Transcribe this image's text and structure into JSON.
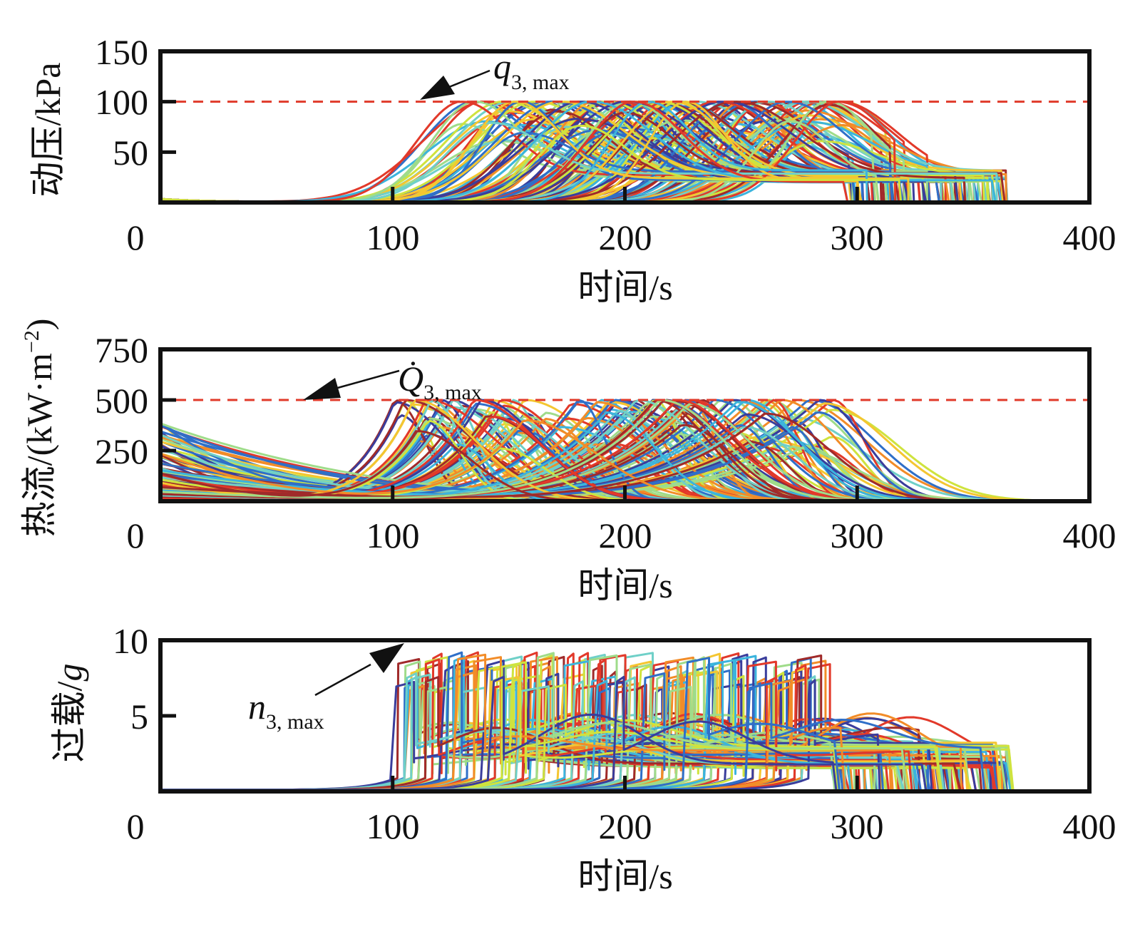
{
  "palette": [
    "#3a3d9c",
    "#2f6fc8",
    "#3bb4dd",
    "#6fd0c8",
    "#9fdc8a",
    "#cfe33e",
    "#f4c631",
    "#f28c28",
    "#e2392a",
    "#a02a2a"
  ],
  "chart_data": [
    {
      "type": "line",
      "name": "dynamic-pressure",
      "ylabel": "动压/kPa",
      "xlabel": "时间/s",
      "xlim": [
        0,
        400
      ],
      "ylim": [
        0,
        150
      ],
      "xticks": [
        "0",
        "100",
        "200",
        "300",
        "400"
      ],
      "yticks": [
        "50",
        "100",
        "150"
      ],
      "ytick_values": [
        50,
        100,
        150
      ],
      "xtick_values": [
        100,
        200,
        300
      ],
      "limit": {
        "value": 100,
        "label": "q",
        "sub": "3, max",
        "color": "#e03a2a"
      },
      "ensemble": {
        "count": 160,
        "seed": 11,
        "peak_time_range": [
          130,
          295
        ],
        "peak_range": [
          60,
          100
        ],
        "tail_plateau_range": [
          20,
          32
        ],
        "end_time_range": [
          295,
          365
        ]
      }
    },
    {
      "type": "line",
      "name": "heat-flux",
      "ylabel_main": "热流/(kW·m",
      "ylabel_sup": "−2",
      "ylabel_end": ")",
      "xlabel": "时间/s",
      "xlim": [
        0,
        400
      ],
      "ylim": [
        0,
        750
      ],
      "xticks": [
        "0",
        "100",
        "200",
        "300",
        "400"
      ],
      "yticks": [
        "250",
        "500",
        "750"
      ],
      "ytick_values": [
        250,
        500,
        750
      ],
      "xtick_values": [
        100,
        200,
        300
      ],
      "limit": {
        "value": 500,
        "label": "Q̇",
        "sub": "3, max",
        "color": "#e03a2a"
      },
      "ensemble": {
        "count": 160,
        "seed": 23,
        "start_value_range": [
          10,
          400
        ],
        "peak_time_range": [
          100,
          290
        ],
        "peak_range": [
          250,
          500
        ],
        "decay_width_range": [
          15,
          45
        ]
      }
    },
    {
      "type": "line",
      "name": "overload",
      "ylabel": "过载/",
      "ylabel_italic": "g",
      "xlabel": "时间/s",
      "xlim": [
        0,
        400
      ],
      "ylim": [
        0,
        10
      ],
      "xticks": [
        "0",
        "100",
        "200",
        "300",
        "400"
      ],
      "yticks": [
        "5",
        "10"
      ],
      "ytick_values": [
        5,
        10
      ],
      "xtick_values": [
        100,
        200,
        300
      ],
      "limit": {
        "value": 10,
        "label": "n",
        "sub": "3, max",
        "color": "#e03a2a"
      },
      "ensemble": {
        "count": 160,
        "seed": 37,
        "jump_time_range": [
          100,
          280
        ],
        "jump_peak_range": [
          6.5,
          8.9
        ],
        "tail_range": [
          1.5,
          3.3
        ],
        "end_time_range": [
          290,
          368
        ]
      }
    }
  ]
}
